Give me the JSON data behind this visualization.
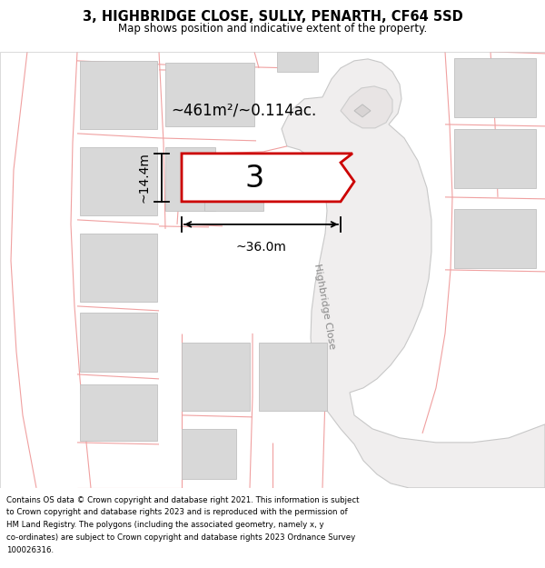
{
  "title": "3, HIGHBRIDGE CLOSE, SULLY, PENARTH, CF64 5SD",
  "subtitle": "Map shows position and indicative extent of the property.",
  "footer": "Contains OS data © Crown copyright and database right 2021. This information is subject to Crown copyright and database rights 2023 and is reproduced with the permission of HM Land Registry. The polygons (including the associated geometry, namely x, y co-ordinates) are subject to Crown copyright and database rights 2023 Ordnance Survey 100026316.",
  "bg_color": "#ffffff",
  "map_bg": "#ffffff",
  "plot_fill": "#ffffff",
  "plot_edge": "#cc0000",
  "building_fill": "#d8d8d8",
  "building_edge": "#c0c0c0",
  "boundary_color": "#f0a0a0",
  "area_text": "~461m²/~0.114ac.",
  "plot_label": "3",
  "dim_width": "~36.0m",
  "dim_height": "~14.4m",
  "road_label": "Highbridge Close",
  "road_fill": "#f0eeee",
  "road_edge": "#cccccc"
}
